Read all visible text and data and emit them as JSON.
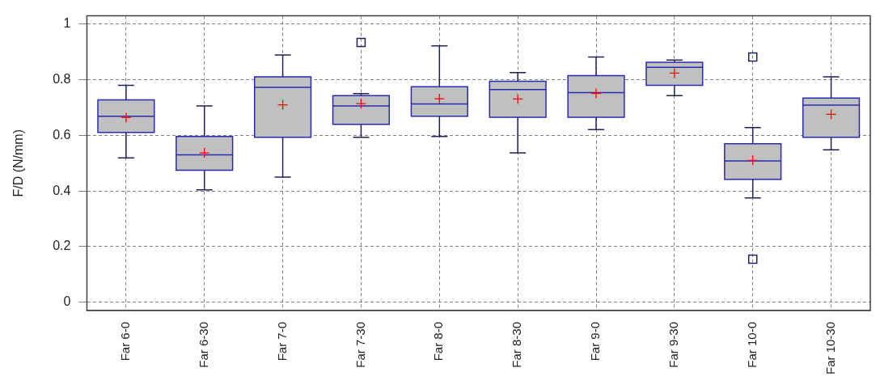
{
  "chart_data": {
    "type": "box",
    "ylabel": "F/D (N/mm)",
    "categories": [
      "Far 6-0",
      "Far 6-30",
      "Far 7-0",
      "Far 7-30",
      "Far 8-0",
      "Far 8-30",
      "Far 9-0",
      "Far 9-30",
      "Far 10-0",
      "Far 10-30"
    ],
    "color": "#c0c0c0",
    "boxes": [
      {
        "low": 0.519,
        "q1": 0.611,
        "median": 0.669,
        "q3": 0.728,
        "high": 0.78,
        "mean": 0.664
      },
      {
        "low": 0.404,
        "q1": 0.475,
        "median": 0.53,
        "q3": 0.596,
        "high": 0.706,
        "mean": 0.537
      },
      {
        "low": 0.45,
        "q1": 0.593,
        "median": 0.773,
        "q3": 0.811,
        "high": 0.889,
        "mean": 0.71
      },
      {
        "low": 0.593,
        "q1": 0.64,
        "median": 0.706,
        "q3": 0.743,
        "high": 0.75,
        "mean": 0.714,
        "outliers": [
          0.934
        ]
      },
      {
        "low": 0.596,
        "q1": 0.669,
        "median": 0.713,
        "q3": 0.775,
        "high": 0.922,
        "mean": 0.732
      },
      {
        "low": 0.537,
        "q1": 0.665,
        "median": 0.765,
        "q3": 0.795,
        "high": 0.826,
        "mean": 0.731
      },
      {
        "low": 0.621,
        "q1": 0.665,
        "median": 0.754,
        "q3": 0.815,
        "high": 0.882,
        "mean": 0.751
      },
      {
        "low": 0.743,
        "q1": 0.78,
        "median": 0.845,
        "q3": 0.863,
        "high": 0.871,
        "mean": 0.824
      },
      {
        "low": 0.375,
        "q1": 0.442,
        "median": 0.508,
        "q3": 0.57,
        "high": 0.628,
        "mean": 0.51,
        "outliers": [
          0.882,
          0.155
        ]
      },
      {
        "low": 0.548,
        "q1": 0.593,
        "median": 0.709,
        "q3": 0.734,
        "high": 0.811,
        "mean": 0.676
      }
    ],
    "ylim": [
      -0.03,
      1.03
    ],
    "yticks": [
      0,
      0.2,
      0.4,
      0.6,
      0.8,
      1
    ],
    "grid": true,
    "legend": false
  }
}
